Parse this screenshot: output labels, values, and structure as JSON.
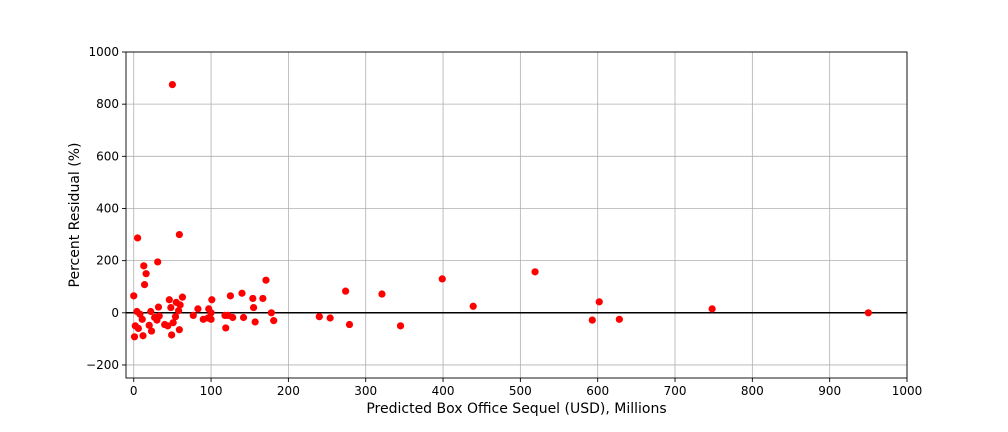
{
  "chart_data": {
    "type": "scatter",
    "xlabel": "Predicted Box Office Sequel (USD), Millions",
    "ylabel": "Percent Residual (%)",
    "xlim": [
      -10,
      1000
    ],
    "ylim": [
      -250,
      1000
    ],
    "xticks": [
      0,
      100,
      200,
      300,
      400,
      500,
      600,
      700,
      800,
      900,
      1000
    ],
    "yticks": [
      -200,
      0,
      200,
      400,
      600,
      800,
      1000
    ],
    "grid": true,
    "reference_line_y": 0,
    "point_color": "#ff0000",
    "reference_line_color": "#000000",
    "series": [
      {
        "points": [
          [
            0,
            65
          ],
          [
            1,
            -92
          ],
          [
            2,
            -50
          ],
          [
            4,
            5
          ],
          [
            5,
            287
          ],
          [
            6,
            -60
          ],
          [
            8,
            -5
          ],
          [
            11,
            -25
          ],
          [
            12,
            -88
          ],
          [
            13,
            180
          ],
          [
            14,
            108
          ],
          [
            16,
            150
          ],
          [
            20,
            -48
          ],
          [
            22,
            5
          ],
          [
            23,
            -70
          ],
          [
            27,
            -18
          ],
          [
            30,
            -28
          ],
          [
            31,
            195
          ],
          [
            32,
            22
          ],
          [
            33,
            -12
          ],
          [
            40,
            -45
          ],
          [
            44,
            -50
          ],
          [
            46,
            50
          ],
          [
            48,
            20
          ],
          [
            49,
            -85
          ],
          [
            50,
            875
          ],
          [
            51,
            -38
          ],
          [
            54,
            -15
          ],
          [
            55,
            40
          ],
          [
            58,
            8
          ],
          [
            59,
            300
          ],
          [
            59,
            -65
          ],
          [
            60,
            30
          ],
          [
            63,
            60
          ],
          [
            77,
            -10
          ],
          [
            83,
            15
          ],
          [
            90,
            -25
          ],
          [
            96,
            -20
          ],
          [
            97,
            15
          ],
          [
            100,
            -25
          ],
          [
            100,
            0
          ],
          [
            101,
            50
          ],
          [
            118,
            -10
          ],
          [
            119,
            -58
          ],
          [
            122,
            -10
          ],
          [
            125,
            65
          ],
          [
            128,
            -18
          ],
          [
            140,
            75
          ],
          [
            142,
            -18
          ],
          [
            154,
            55
          ],
          [
            155,
            20
          ],
          [
            157,
            -35
          ],
          [
            167,
            55
          ],
          [
            171,
            125
          ],
          [
            178,
            0
          ],
          [
            181,
            -30
          ],
          [
            240,
            -15
          ],
          [
            254,
            -20
          ],
          [
            274,
            83
          ],
          [
            279,
            -45
          ],
          [
            321,
            72
          ],
          [
            345,
            -50
          ],
          [
            399,
            130
          ],
          [
            439,
            25
          ],
          [
            519,
            157
          ],
          [
            593,
            -28
          ],
          [
            602,
            42
          ],
          [
            628,
            -25
          ],
          [
            748,
            15
          ],
          [
            950,
            0
          ]
        ]
      }
    ]
  }
}
